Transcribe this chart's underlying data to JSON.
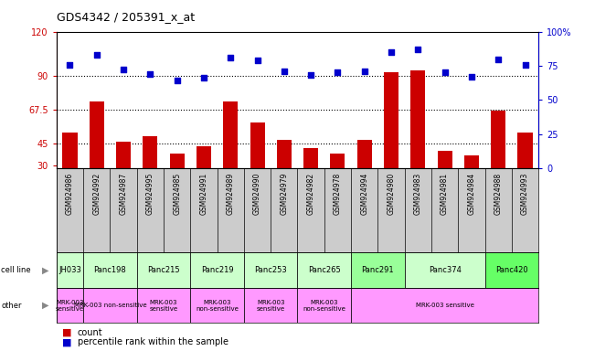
{
  "title": "GDS4342 / 205391_x_at",
  "samples": [
    "GSM924986",
    "GSM924992",
    "GSM924987",
    "GSM924995",
    "GSM924985",
    "GSM924991",
    "GSM924989",
    "GSM924990",
    "GSM924979",
    "GSM924982",
    "GSM924978",
    "GSM924994",
    "GSM924980",
    "GSM924983",
    "GSM924981",
    "GSM924984",
    "GSM924988",
    "GSM924993"
  ],
  "bar_values": [
    52,
    73,
    46,
    50,
    38,
    43,
    73,
    59,
    47,
    42,
    38,
    47,
    93,
    94,
    40,
    37,
    67,
    52
  ],
  "dot_values": [
    76,
    83,
    72,
    69,
    64,
    66,
    81,
    79,
    71,
    68,
    70,
    71,
    85,
    87,
    70,
    67,
    80,
    76
  ],
  "cell_lines": [
    {
      "name": "JH033",
      "start": 0,
      "end": 1,
      "color": "#ccffcc"
    },
    {
      "name": "Panc198",
      "start": 1,
      "end": 3,
      "color": "#ccffcc"
    },
    {
      "name": "Panc215",
      "start": 3,
      "end": 5,
      "color": "#ccffcc"
    },
    {
      "name": "Panc219",
      "start": 5,
      "end": 7,
      "color": "#ccffcc"
    },
    {
      "name": "Panc253",
      "start": 7,
      "end": 9,
      "color": "#ccffcc"
    },
    {
      "name": "Panc265",
      "start": 9,
      "end": 11,
      "color": "#ccffcc"
    },
    {
      "name": "Panc291",
      "start": 11,
      "end": 13,
      "color": "#99ff99"
    },
    {
      "name": "Panc374",
      "start": 13,
      "end": 16,
      "color": "#ccffcc"
    },
    {
      "name": "Panc420",
      "start": 16,
      "end": 18,
      "color": "#66ff66"
    }
  ],
  "other_labels": [
    {
      "label": "MRK-003\nsensitive",
      "start": 0,
      "end": 1,
      "color": "#ff99ff"
    },
    {
      "label": "MRK-003 non-sensitive",
      "start": 1,
      "end": 3,
      "color": "#ff99ff"
    },
    {
      "label": "MRK-003\nsensitive",
      "start": 3,
      "end": 5,
      "color": "#ff99ff"
    },
    {
      "label": "MRK-003\nnon-sensitive",
      "start": 5,
      "end": 7,
      "color": "#ff99ff"
    },
    {
      "label": "MRK-003\nsensitive",
      "start": 7,
      "end": 9,
      "color": "#ff99ff"
    },
    {
      "label": "MRK-003\nnon-sensitive",
      "start": 9,
      "end": 11,
      "color": "#ff99ff"
    },
    {
      "label": "MRK-003 sensitive",
      "start": 11,
      "end": 18,
      "color": "#ff99ff"
    }
  ],
  "ylim_left": [
    28,
    120
  ],
  "ylim_right": [
    0,
    100
  ],
  "yticks_left": [
    30,
    45,
    67.5,
    90,
    120
  ],
  "yticks_right": [
    0,
    25,
    50,
    75,
    100
  ],
  "hlines": [
    45,
    67.5,
    90
  ],
  "bar_color": "#cc0000",
  "dot_color": "#0000cc",
  "bg_color": "#ffffff",
  "sample_bg_color": "#cccccc",
  "plot_bg_color": "#ffffff"
}
